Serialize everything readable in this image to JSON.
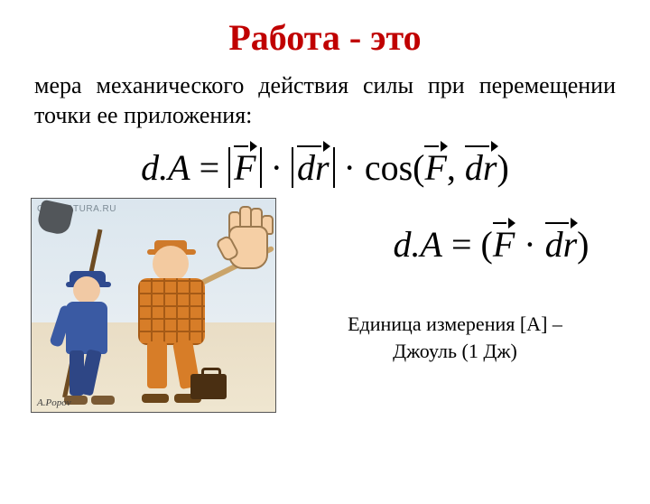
{
  "title": "Работа - это",
  "definition": "мера механического действия силы при перемещении точки ее приложения:",
  "formula1": {
    "dA": "d.A",
    "eq": "=",
    "F": "F",
    "dr": "dr",
    "mult": "·",
    "cos": "cos(",
    "comma": ",",
    "close": ")"
  },
  "formula2": {
    "dA": "d.A",
    "eq": "=",
    "open": "(",
    "F": "F",
    "dot": " · ",
    "dr": "dr",
    "close": ")"
  },
  "units_line1": "Единица измерения [A] –",
  "units_line2": "Джоуль (1 Дж)",
  "watermark": "CARICATURA.RU",
  "signature": "A.Popov",
  "colors": {
    "title": "#c00000",
    "text": "#000000",
    "background": "#ffffff",
    "sky": "#dbe6ee",
    "ground": "#e9ddc5",
    "worker_blue": "#3a5aa3",
    "boss_orange": "#d77d28",
    "skin": "#f3caa0",
    "shovel": "#52565a",
    "case": "#4a2f12"
  },
  "fontsizes": {
    "title": 40,
    "definition": 26,
    "formula": 40,
    "units": 22
  }
}
